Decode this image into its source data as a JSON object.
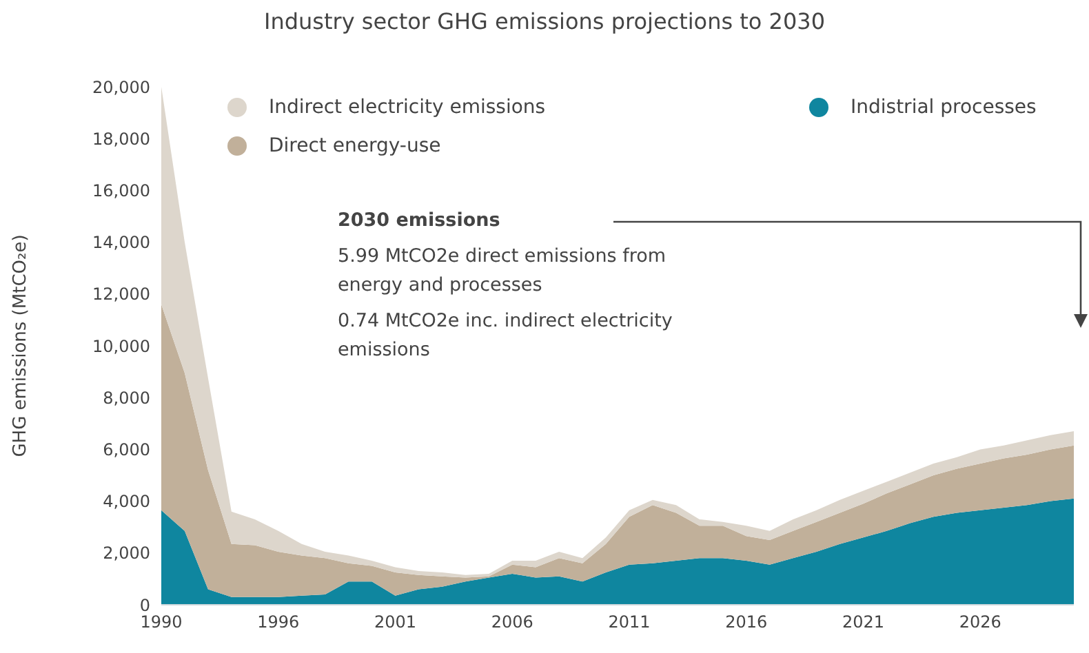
{
  "chart_data": {
    "type": "area",
    "stacked": true,
    "title": "Industry sector GHG emissions projections to 2030",
    "ylabel": "GHG emissions (MtCO₂e)",
    "categories": [
      "1990",
      null,
      null,
      null,
      null,
      "1996",
      null,
      null,
      null,
      null,
      "2001",
      null,
      null,
      null,
      null,
      "2006",
      null,
      null,
      null,
      null,
      "2011",
      null,
      null,
      null,
      null,
      "2016",
      null,
      null,
      null,
      null,
      "2021",
      null,
      null,
      null,
      null,
      "2026",
      null,
      null,
      null,
      null
    ],
    "series": [
      {
        "name": "Indistrial processes",
        "color": "#0f869f",
        "values": [
          3650,
          2850,
          600,
          300,
          300,
          300,
          350,
          400,
          900,
          900,
          350,
          600,
          700,
          900,
          1050,
          1200,
          1050,
          1100,
          900,
          1250,
          1550,
          1600,
          1700,
          1800,
          1800,
          1700,
          1550,
          1800,
          2050,
          2350,
          2600,
          2850,
          3150,
          3400,
          3550,
          3650,
          3750,
          3850,
          4000,
          4100
        ]
      },
      {
        "name": "Direct energy-use",
        "color": "#c1b09a",
        "values": [
          7950,
          6100,
          4600,
          2050,
          2000,
          1750,
          1550,
          1400,
          700,
          600,
          900,
          550,
          400,
          150,
          50,
          350,
          400,
          700,
          700,
          1100,
          1850,
          2250,
          1850,
          1250,
          1250,
          950,
          950,
          1050,
          1150,
          1200,
          1300,
          1450,
          1500,
          1600,
          1700,
          1800,
          1900,
          1950,
          2000,
          2050
        ]
      },
      {
        "name": "Indirect electricity emissions",
        "color": "#ddd6cc",
        "values": [
          8400,
          5050,
          3550,
          1250,
          1000,
          800,
          450,
          250,
          300,
          200,
          200,
          150,
          150,
          100,
          100,
          150,
          250,
          250,
          200,
          250,
          250,
          200,
          300,
          250,
          150,
          400,
          350,
          450,
          450,
          500,
          500,
          450,
          450,
          450,
          450,
          550,
          500,
          550,
          550,
          550
        ]
      }
    ],
    "ylim": [
      0,
      20000
    ],
    "yticks": [
      0,
      {
        "value": 2000,
        "label": "2,000"
      },
      {
        "value": 4000,
        "label": "4,000"
      },
      {
        "value": 6000,
        "label": "6,000"
      },
      {
        "value": 8000,
        "label": "8,000"
      },
      {
        "value": 10000,
        "label": "10,000"
      },
      {
        "value": 12000,
        "label": "12,000"
      },
      {
        "value": 14000,
        "label": "14,000"
      },
      {
        "value": 16000,
        "label": "16,000"
      },
      {
        "value": 18000,
        "label": "18,000"
      },
      {
        "value": 20000,
        "label": "20,000"
      }
    ],
    "legend": "top",
    "grid": false,
    "annotations": [
      "2030 emissions",
      "5.99 MtCO2e direct emissions from energy and processes",
      "0.74 MtCO2e inc. indirect electricity emissions"
    ]
  }
}
